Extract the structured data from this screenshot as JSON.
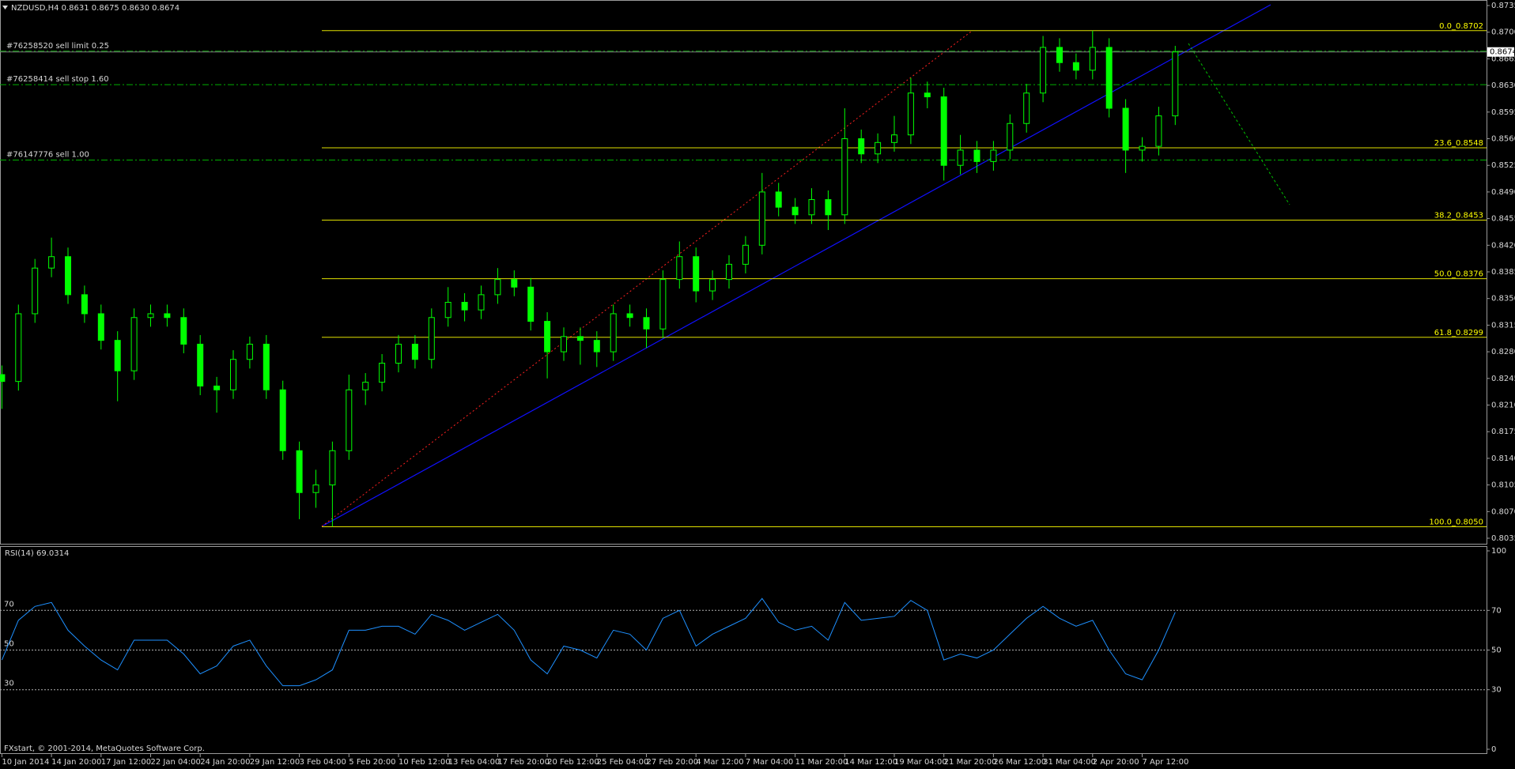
{
  "chart_data": [
    {
      "type": "candlestick",
      "title": "NZDUSD,H4  0.8631 0.8675 0.8630 0.8674",
      "color": "#00ff00",
      "categories": [
        "10 Jan 2014",
        null,
        null,
        "14 Jan 20:00",
        null,
        null,
        "17 Jan 12:00",
        null,
        null,
        "22 Jan 04:00",
        null,
        null,
        "24 Jan 20:00",
        null,
        null,
        "29 Jan 12:00",
        null,
        null,
        "3 Feb 04:00",
        null,
        null,
        "5 Feb 20:00",
        null,
        null,
        "10 Feb 12:00",
        null,
        null,
        "13 Feb 04:00",
        null,
        null,
        "17 Feb 20:00",
        null,
        null,
        "20 Feb 12:00",
        null,
        null,
        "25 Feb 04:00",
        null,
        null,
        "27 Feb 20:00",
        null,
        null,
        "4 Mar 12:00",
        null,
        null,
        "7 Mar 04:00",
        null,
        null,
        "11 Mar 20:00",
        null,
        null,
        "14 Mar 12:00",
        null,
        null,
        "19 Mar 04:00",
        null,
        null,
        "21 Mar 20:00",
        null,
        null,
        "26 Mar 12:00",
        null,
        null,
        "31 Mar 04:00",
        null,
        null,
        "2 Apr 20:00",
        null,
        null,
        "7 Apr 12:00",
        null,
        null
      ],
      "open": [
        0.825,
        0.8241,
        0.833,
        0.839,
        0.8405,
        0.8355,
        0.833,
        0.8295,
        0.8255,
        0.8325,
        0.833,
        0.8325,
        0.829,
        0.8235,
        0.823,
        0.827,
        0.829,
        0.823,
        0.815,
        0.8095,
        0.8105,
        0.815,
        0.823,
        0.824,
        0.8265,
        0.829,
        0.827,
        0.8325,
        0.8345,
        0.8335,
        0.8355,
        0.8375,
        0.8365,
        0.832,
        0.828,
        0.83,
        0.8295,
        0.828,
        0.833,
        0.8325,
        0.831,
        0.8375,
        0.8405,
        0.836,
        0.8375,
        0.8395,
        0.842,
        0.849,
        0.847,
        0.846,
        0.848,
        0.846,
        0.856,
        0.854,
        0.8555,
        0.8565,
        0.862,
        0.8615,
        0.8525,
        0.8545,
        0.853,
        0.8545,
        0.858,
        0.862,
        0.868,
        0.866,
        0.865,
        0.868,
        0.86,
        0.8545,
        0.855,
        0.859
      ],
      "high": [
        0.8262,
        0.8342,
        0.8402,
        0.843,
        0.8417,
        0.8367,
        0.8342,
        0.8307,
        0.8337,
        0.8342,
        0.8342,
        0.8337,
        0.8302,
        0.8247,
        0.8282,
        0.83,
        0.8302,
        0.8242,
        0.8162,
        0.8125,
        0.8162,
        0.825,
        0.8252,
        0.8277,
        0.8302,
        0.8302,
        0.8337,
        0.8365,
        0.8357,
        0.8367,
        0.839,
        0.8387,
        0.8377,
        0.8332,
        0.8312,
        0.8312,
        0.8307,
        0.8342,
        0.8342,
        0.8337,
        0.8387,
        0.8425,
        0.8417,
        0.8387,
        0.8407,
        0.8432,
        0.8515,
        0.8502,
        0.8482,
        0.8495,
        0.8492,
        0.86,
        0.8572,
        0.8567,
        0.859,
        0.864,
        0.8635,
        0.8627,
        0.8565,
        0.8557,
        0.8557,
        0.8592,
        0.8632,
        0.8695,
        0.8692,
        0.8672,
        0.8702,
        0.8692,
        0.8612,
        0.8562,
        0.8602,
        0.8682
      ],
      "low": [
        0.8205,
        0.8229,
        0.8318,
        0.8378,
        0.8343,
        0.8318,
        0.8283,
        0.8215,
        0.8243,
        0.8313,
        0.8313,
        0.8278,
        0.8223,
        0.82,
        0.8218,
        0.8258,
        0.8218,
        0.8138,
        0.806,
        0.8075,
        0.805,
        0.8138,
        0.821,
        0.8228,
        0.8253,
        0.8258,
        0.8258,
        0.8313,
        0.832,
        0.8323,
        0.8343,
        0.8353,
        0.8308,
        0.8245,
        0.8268,
        0.8263,
        0.826,
        0.8268,
        0.8313,
        0.8285,
        0.8298,
        0.8363,
        0.8345,
        0.8348,
        0.8363,
        0.8383,
        0.8408,
        0.8458,
        0.8448,
        0.8448,
        0.844,
        0.8448,
        0.8528,
        0.8528,
        0.8543,
        0.8553,
        0.86,
        0.8505,
        0.8513,
        0.8515,
        0.8518,
        0.8533,
        0.8568,
        0.8608,
        0.8648,
        0.8638,
        0.8638,
        0.8588,
        0.8515,
        0.853,
        0.8538,
        0.8578
      ],
      "close": [
        0.8241,
        0.833,
        0.839,
        0.8405,
        0.8355,
        0.833,
        0.8295,
        0.8255,
        0.8325,
        0.833,
        0.8325,
        0.829,
        0.8235,
        0.823,
        0.827,
        0.829,
        0.823,
        0.815,
        0.8095,
        0.8105,
        0.815,
        0.823,
        0.824,
        0.8265,
        0.829,
        0.827,
        0.8325,
        0.8345,
        0.8335,
        0.8355,
        0.8375,
        0.8365,
        0.832,
        0.828,
        0.83,
        0.8295,
        0.828,
        0.833,
        0.8325,
        0.831,
        0.8375,
        0.8405,
        0.836,
        0.8375,
        0.8395,
        0.842,
        0.849,
        0.847,
        0.846,
        0.848,
        0.846,
        0.856,
        0.854,
        0.8555,
        0.8565,
        0.862,
        0.8615,
        0.8525,
        0.8545,
        0.853,
        0.8545,
        0.858,
        0.862,
        0.868,
        0.866,
        0.865,
        0.868,
        0.86,
        0.8545,
        0.855,
        0.859,
        0.8674
      ],
      "ylim": [
        0.8035,
        0.8735
      ],
      "yticks": [
        0.8735,
        {
          "value": 0.87,
          "label": "0.8700"
        },
        0.8665,
        {
          "value": 0.863,
          "label": "0.8630"
        },
        0.8595,
        {
          "value": 0.856,
          "label": "0.8560"
        },
        0.8525,
        {
          "value": 0.849,
          "label": "0.8490"
        },
        0.8455,
        {
          "value": 0.842,
          "label": "0.8420"
        },
        0.8385,
        {
          "value": 0.835,
          "label": "0.8350"
        },
        0.8315,
        {
          "value": 0.828,
          "label": "0.8280"
        },
        0.8245,
        {
          "value": 0.821,
          "label": "0.8210"
        },
        0.8175,
        {
          "value": 0.814,
          "label": "0.8140"
        },
        0.8105,
        {
          "value": 0.807,
          "label": "0.8070"
        },
        0.8035
      ],
      "current_price": 0.8674,
      "fib_levels": [
        {
          "name": "0.0_0.8702",
          "value": 0.8702
        },
        {
          "name": "23.6_0.8548",
          "value": 0.8548
        },
        {
          "name": "38.2_0.8453",
          "value": 0.8453
        },
        {
          "name": "50.0_0.8376",
          "value": 0.8376
        },
        {
          "name": "61.8_0.8299",
          "value": 0.8299
        },
        {
          "name": "100.0_0.8050",
          "value": 0.805
        }
      ],
      "orders": [
        {
          "name": "#76258520 sell limit 0.25",
          "value": 0.8675
        },
        {
          "name": "#76258414 sell stop 1.60",
          "value": 0.8631
        },
        {
          "name": "#76147776 sell 1.00",
          "value": 0.8532
        }
      ]
    },
    {
      "type": "line",
      "title": "RSI(14) 69.0314",
      "color": "#1e90ff",
      "values": [
        45,
        65,
        72,
        74,
        60,
        52,
        45,
        40,
        55,
        55,
        55,
        48,
        38,
        42,
        52,
        55,
        42,
        32,
        32,
        35,
        40,
        60,
        60,
        62,
        62,
        58,
        68,
        65,
        60,
        64,
        68,
        60,
        45,
        38,
        52,
        50,
        46,
        60,
        58,
        50,
        66,
        70,
        52,
        58,
        62,
        66,
        76,
        64,
        60,
        62,
        55,
        74,
        65,
        66,
        67,
        75,
        70,
        45,
        48,
        46,
        50,
        58,
        66,
        72,
        66,
        62,
        65,
        50,
        38,
        35,
        50,
        69.0314
      ],
      "ylim": [
        0,
        100
      ],
      "yticks": [
        0,
        30,
        50,
        70,
        100
      ]
    }
  ],
  "copyright": "FXstart, © 2001-2014, MetaQuotes Software Corp."
}
